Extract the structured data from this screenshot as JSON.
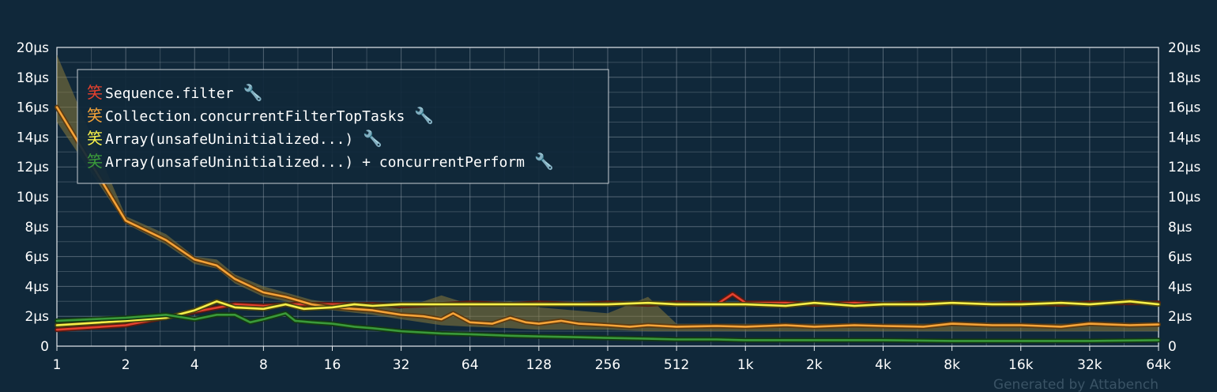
{
  "chart_data": {
    "type": "line",
    "x_scale": "log2",
    "x_ticks": [
      "1",
      "2",
      "4",
      "8",
      "16",
      "32",
      "64",
      "128",
      "256",
      "512",
      "1k",
      "2k",
      "4k",
      "8k",
      "16k",
      "32k",
      "64k"
    ],
    "x_range": [
      1,
      65536
    ],
    "y_range_us": [
      0,
      20
    ],
    "y_ticks": [
      "0",
      "2µs",
      "4µs",
      "6µs",
      "8µs",
      "10µs",
      "12µs",
      "14µs",
      "16µs",
      "18µs",
      "20µs"
    ],
    "grid": true,
    "legend_position": "top-left",
    "series": [
      {
        "name": "Sequence.filter",
        "marker": "笑",
        "color": "#e5412e",
        "outline": "#5a1a12",
        "points": [
          [
            1,
            1.1
          ],
          [
            2,
            1.4
          ],
          [
            4,
            2.3
          ],
          [
            6,
            2.8
          ],
          [
            8,
            2.7
          ],
          [
            11,
            2.8
          ],
          [
            16,
            2.8
          ],
          [
            24,
            2.8
          ],
          [
            32,
            2.7
          ],
          [
            48,
            2.8
          ],
          [
            64,
            2.9
          ],
          [
            96,
            2.8
          ],
          [
            128,
            2.9
          ],
          [
            192,
            2.8
          ],
          [
            256,
            2.9
          ],
          [
            384,
            2.8
          ],
          [
            512,
            2.9
          ],
          [
            768,
            2.8
          ],
          [
            900,
            3.5
          ],
          [
            1024,
            2.9
          ],
          [
            1536,
            2.9
          ],
          [
            2048,
            2.8
          ],
          [
            3072,
            2.9
          ],
          [
            4096,
            2.8
          ],
          [
            6144,
            2.9
          ],
          [
            8192,
            2.9
          ],
          [
            12288,
            2.8
          ],
          [
            16384,
            2.9
          ],
          [
            24576,
            2.8
          ],
          [
            32768,
            2.9
          ],
          [
            49152,
            2.9
          ],
          [
            65536,
            2.9
          ]
        ]
      },
      {
        "name": "Collection.concurrentFilterTopTasks",
        "marker": "笑",
        "color": "#f5a338",
        "outline": "#5c3a10",
        "band": [
          [
            1,
            19.5,
            15.0
          ],
          [
            2,
            8.7,
            8.2
          ],
          [
            3,
            7.5,
            6.8
          ],
          [
            4,
            6.0,
            5.5
          ],
          [
            5,
            5.8,
            5.2
          ],
          [
            6,
            4.8,
            4.2
          ],
          [
            8,
            4.0,
            3.3
          ],
          [
            10,
            3.6,
            3.0
          ],
          [
            13,
            3.1,
            2.5
          ],
          [
            16,
            2.9,
            2.4
          ],
          [
            24,
            2.7,
            2.1
          ],
          [
            32,
            2.5,
            1.8
          ],
          [
            48,
            3.4,
            1.4
          ],
          [
            64,
            2.8,
            1.3
          ],
          [
            96,
            3.0,
            1.2
          ],
          [
            128,
            2.6,
            1.1
          ],
          [
            256,
            2.2,
            1.1
          ],
          [
            384,
            3.3,
            1.0
          ],
          [
            512,
            1.5,
            1.0
          ],
          [
            1024,
            1.5,
            1.0
          ],
          [
            65536,
            1.5,
            1.0
          ]
        ],
        "points": [
          [
            1,
            16.0
          ],
          [
            2,
            8.4
          ],
          [
            3,
            7.1
          ],
          [
            4,
            5.8
          ],
          [
            5,
            5.4
          ],
          [
            6,
            4.5
          ],
          [
            8,
            3.6
          ],
          [
            10,
            3.3
          ],
          [
            13,
            2.8
          ],
          [
            16,
            2.6
          ],
          [
            24,
            2.4
          ],
          [
            32,
            2.1
          ],
          [
            40,
            2.0
          ],
          [
            48,
            1.8
          ],
          [
            54,
            2.2
          ],
          [
            64,
            1.6
          ],
          [
            80,
            1.5
          ],
          [
            96,
            1.9
          ],
          [
            112,
            1.6
          ],
          [
            128,
            1.5
          ],
          [
            160,
            1.7
          ],
          [
            192,
            1.5
          ],
          [
            256,
            1.4
          ],
          [
            320,
            1.3
          ],
          [
            384,
            1.4
          ],
          [
            512,
            1.3
          ],
          [
            768,
            1.35
          ],
          [
            1024,
            1.3
          ],
          [
            1536,
            1.4
          ],
          [
            2048,
            1.3
          ],
          [
            3072,
            1.4
          ],
          [
            4096,
            1.35
          ],
          [
            6144,
            1.3
          ],
          [
            8192,
            1.5
          ],
          [
            12288,
            1.4
          ],
          [
            16384,
            1.4
          ],
          [
            24576,
            1.3
          ],
          [
            32768,
            1.5
          ],
          [
            49152,
            1.4
          ],
          [
            65536,
            1.45
          ]
        ]
      },
      {
        "name": "Array(unsafeUninitialized...)",
        "marker": "笑",
        "color": "#f7f04a",
        "outline": "#4a4410",
        "points": [
          [
            1,
            1.4
          ],
          [
            2,
            1.7
          ],
          [
            3,
            1.9
          ],
          [
            4,
            2.4
          ],
          [
            5,
            3.0
          ],
          [
            6,
            2.6
          ],
          [
            8,
            2.5
          ],
          [
            10,
            2.8
          ],
          [
            12,
            2.5
          ],
          [
            16,
            2.6
          ],
          [
            20,
            2.8
          ],
          [
            24,
            2.7
          ],
          [
            32,
            2.8
          ],
          [
            48,
            2.8
          ],
          [
            64,
            2.8
          ],
          [
            96,
            2.8
          ],
          [
            128,
            2.8
          ],
          [
            192,
            2.8
          ],
          [
            256,
            2.8
          ],
          [
            384,
            2.9
          ],
          [
            512,
            2.8
          ],
          [
            768,
            2.8
          ],
          [
            1024,
            2.8
          ],
          [
            1536,
            2.7
          ],
          [
            2048,
            2.9
          ],
          [
            3072,
            2.7
          ],
          [
            4096,
            2.8
          ],
          [
            6144,
            2.8
          ],
          [
            8192,
            2.9
          ],
          [
            12288,
            2.8
          ],
          [
            16384,
            2.8
          ],
          [
            24576,
            2.9
          ],
          [
            32768,
            2.8
          ],
          [
            49152,
            3.0
          ],
          [
            65536,
            2.8
          ]
        ]
      },
      {
        "name": "Array(unsafeUninitialized...) + concurrentPerform",
        "marker": "笑",
        "color": "#3a9a3a",
        "outline": "#133a13",
        "points": [
          [
            1,
            1.7
          ],
          [
            2,
            1.9
          ],
          [
            3,
            2.1
          ],
          [
            4,
            1.8
          ],
          [
            5,
            2.1
          ],
          [
            6,
            2.1
          ],
          [
            7,
            1.6
          ],
          [
            8,
            1.8
          ],
          [
            10,
            2.2
          ],
          [
            11,
            1.7
          ],
          [
            13,
            1.6
          ],
          [
            16,
            1.5
          ],
          [
            20,
            1.3
          ],
          [
            24,
            1.2
          ],
          [
            32,
            1.0
          ],
          [
            48,
            0.85
          ],
          [
            64,
            0.8
          ],
          [
            96,
            0.7
          ],
          [
            128,
            0.65
          ],
          [
            192,
            0.6
          ],
          [
            256,
            0.55
          ],
          [
            384,
            0.5
          ],
          [
            512,
            0.45
          ],
          [
            768,
            0.45
          ],
          [
            1024,
            0.4
          ],
          [
            2048,
            0.4
          ],
          [
            4096,
            0.4
          ],
          [
            8192,
            0.35
          ],
          [
            16384,
            0.35
          ],
          [
            32768,
            0.35
          ],
          [
            65536,
            0.4
          ]
        ]
      }
    ]
  },
  "legend": {
    "items": [
      {
        "marker": "笑",
        "label": "Sequence.filter",
        "wrench": "🔧"
      },
      {
        "marker": "笑",
        "label": "Collection.concurrentFilterTopTasks",
        "wrench": "🔧"
      },
      {
        "marker": "笑",
        "label": "Array(unsafeUninitialized...)",
        "wrench": "🔧"
      },
      {
        "marker": "笑",
        "label": "Array(unsafeUninitialized...) + concurrentPerform",
        "wrench": "🔧"
      }
    ]
  },
  "theme": {
    "background": "#10283a",
    "grid_color": "#8a98a4",
    "text_color": "#ffffff"
  },
  "footer": "Generated by Attabench"
}
